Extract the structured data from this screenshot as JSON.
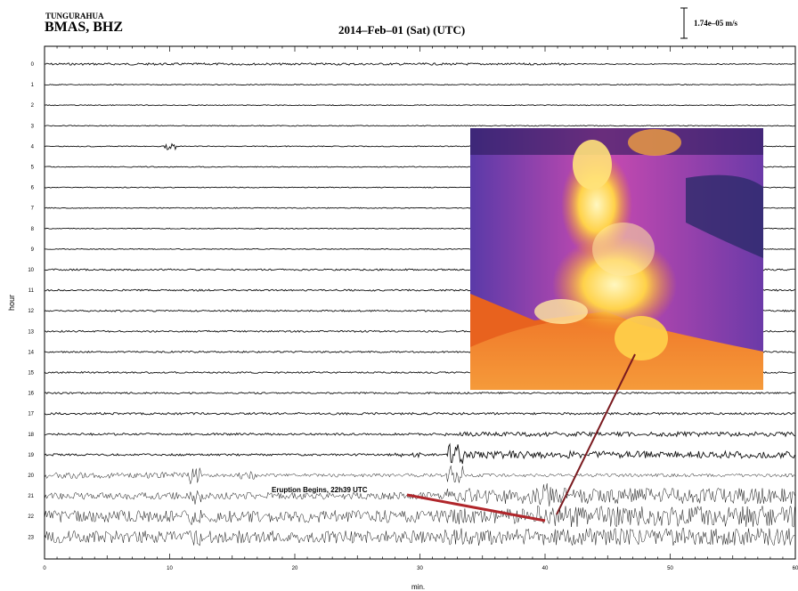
{
  "header": {
    "volcano": "TUNGURAHUA",
    "station": "BMAS, BHZ",
    "title": "2014–Feb–01 (Sat) (UTC)",
    "scale": "1.74e–05 m/s"
  },
  "chart_data": {
    "type": "line",
    "title": "2014–Feb–01 (Sat) (UTC)",
    "xlabel": "min.",
    "ylabel": "hour",
    "xlim": [
      0,
      60
    ],
    "ylim": [
      0,
      23
    ],
    "x_ticks": [
      "0",
      "10",
      "20",
      "30",
      "40",
      "50",
      "60"
    ],
    "y_ticks": [
      "0",
      "1",
      "2",
      "3",
      "4",
      "5",
      "6",
      "7",
      "8",
      "9",
      "10",
      "11",
      "12",
      "13",
      "14",
      "15",
      "16",
      "17",
      "18",
      "19",
      "20",
      "21",
      "22",
      "23"
    ],
    "scale_bar": "1.74e–05 m/s",
    "annotation": {
      "text": "Eruption Begins, 22h39 UTC",
      "hour": 22,
      "minute": 39
    },
    "line_color": "#111111",
    "arrow_color": "#b0262b"
  }
}
